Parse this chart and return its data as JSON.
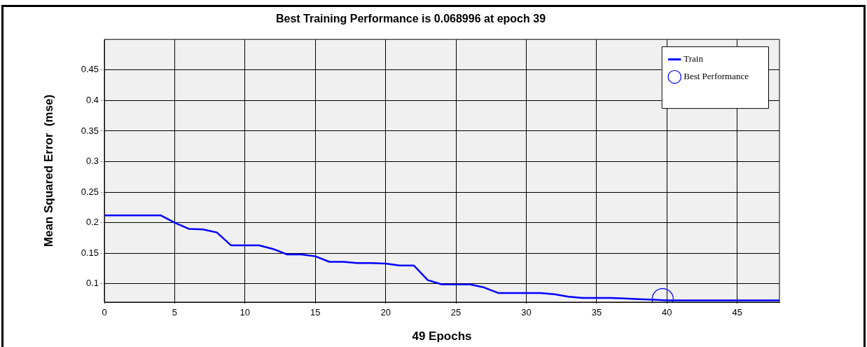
{
  "chart_data": {
    "type": "line",
    "title": "Best Training Performance is 0.068996 at epoch 39",
    "xlabel": "49 Epochs",
    "ylabel": "Mean Squared Error  (mse)",
    "x": [
      0,
      1,
      2,
      3,
      4,
      5,
      6,
      7,
      8,
      9,
      10,
      11,
      12,
      13,
      14,
      15,
      16,
      17,
      18,
      19,
      20,
      21,
      22,
      23,
      24,
      25,
      26,
      27,
      28,
      29,
      30,
      31,
      32,
      33,
      34,
      35,
      36,
      37,
      38,
      39,
      40,
      41,
      42,
      43,
      44,
      45,
      46,
      47,
      48
    ],
    "series": [
      {
        "name": "Train",
        "type": "line",
        "color": "#0000ff",
        "marker": "none",
        "values": [
          0.212,
          0.212,
          0.212,
          0.212,
          0.212,
          0.2,
          0.19,
          0.189,
          0.184,
          0.163,
          0.163,
          0.163,
          0.157,
          0.148,
          0.148,
          0.145,
          0.136,
          0.136,
          0.134,
          0.134,
          0.133,
          0.13,
          0.13,
          0.106,
          0.099,
          0.099,
          0.099,
          0.094,
          0.085,
          0.085,
          0.085,
          0.085,
          0.083,
          0.079,
          0.077,
          0.077,
          0.077,
          0.076,
          0.075,
          0.074,
          0.073,
          0.073,
          0.073,
          0.073,
          0.073,
          0.073,
          0.073,
          0.073,
          0.073
        ]
      },
      {
        "name": "Best Performance",
        "type": "scatter",
        "color": "#0000ff",
        "marker": "circle",
        "x": [
          39.7
        ],
        "values": [
          0.075
        ]
      }
    ],
    "xlim": [
      0,
      48
    ],
    "xticks": [
      0,
      5,
      10,
      15,
      20,
      25,
      30,
      35,
      40,
      45
    ],
    "ylim": [
      0.07,
      0.5
    ],
    "yticks": [
      0.1,
      0.15,
      0.2,
      0.25,
      0.3,
      0.35,
      0.4,
      0.45
    ],
    "grid": true,
    "legend": "top right"
  }
}
